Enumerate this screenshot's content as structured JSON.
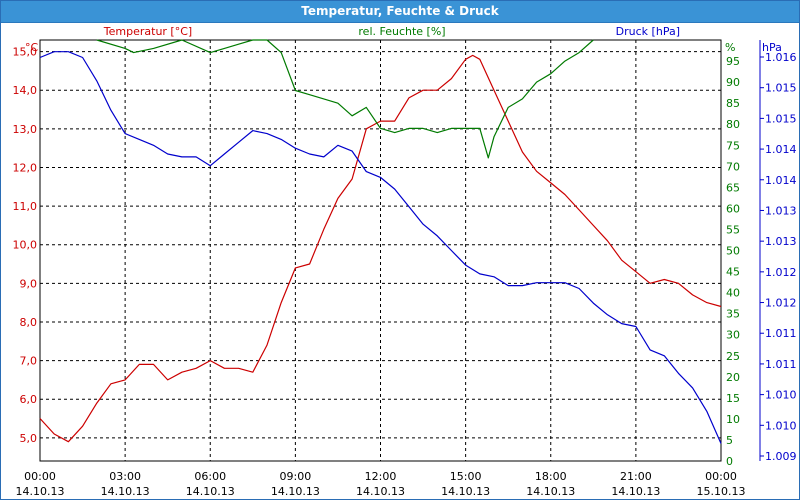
{
  "window": {
    "title": "Temperatur, Feuchte & Druck"
  },
  "colors": {
    "temperature": "#cc0000",
    "humidity": "#007a00",
    "pressure": "#0000cc",
    "grid": "#000000",
    "titlebar": "#3a93d6"
  },
  "chart_data": {
    "type": "line",
    "title": "Temperatur, Feuchte & Druck",
    "grid": true,
    "x_ticks": [
      {
        "time": "00:00",
        "date": "14.10.13"
      },
      {
        "time": "03:00",
        "date": "14.10.13"
      },
      {
        "time": "06:00",
        "date": "14.10.13"
      },
      {
        "time": "09:00",
        "date": "14.10.13"
      },
      {
        "time": "12:00",
        "date": "14.10.13"
      },
      {
        "time": "15:00",
        "date": "14.10.13"
      },
      {
        "time": "18:00",
        "date": "14.10.13"
      },
      {
        "time": "21:00",
        "date": "14.10.13"
      },
      {
        "time": "00:00",
        "date": "15.10.13"
      }
    ],
    "xlim_hours": [
      0,
      24
    ],
    "axes": {
      "temperature": {
        "label": "Temperatur [°C]",
        "unit": "°C",
        "ylim": [
          4.4,
          15.3
        ],
        "ticks": [
          "15,0",
          "14,0",
          "13,0",
          "12,0",
          "11,0",
          "10,0",
          "9,0",
          "8,0",
          "7,0",
          "6,0",
          "5,0"
        ]
      },
      "humidity": {
        "label": "rel. Feuchte [%]",
        "unit": "%",
        "ylim": [
          0,
          100
        ],
        "ticks": [
          "95",
          "90",
          "85",
          "80",
          "75",
          "70",
          "65",
          "60",
          "55",
          "50",
          "45",
          "40",
          "35",
          "30",
          "25",
          "20",
          "15",
          "10",
          "5",
          "0"
        ]
      },
      "pressure": {
        "label": "Druck [hPa]",
        "unit": "hPa",
        "ylim": [
          1009.0,
          1016.2
        ],
        "ticks": [
          "1.016",
          "1.015",
          "1.015",
          "1.014",
          "1.014",
          "1.013",
          "1.013",
          "1.012",
          "1.012",
          "1.011",
          "1.011",
          "1.010",
          "1.010",
          "1.009"
        ]
      }
    },
    "series": [
      {
        "name": "Temperatur [°C]",
        "axis": "temperature",
        "x": [
          0,
          0.5,
          1,
          1.5,
          2,
          2.5,
          3,
          3.5,
          4,
          4.5,
          5,
          5.5,
          6,
          6.5,
          7,
          7.5,
          8,
          8.5,
          9,
          9.5,
          10,
          10.5,
          11,
          11.5,
          12,
          12.5,
          13,
          13.5,
          14,
          14.5,
          15,
          15.25,
          15.5,
          15.75,
          16,
          16.5,
          17,
          17.5,
          18,
          18.5,
          19,
          19.5,
          20,
          20.5,
          21,
          21.5,
          22,
          22.5,
          23,
          23.5,
          24
        ],
        "values": [
          5.5,
          5.1,
          4.9,
          5.3,
          5.9,
          6.4,
          6.5,
          6.9,
          6.9,
          6.5,
          6.7,
          6.8,
          7.0,
          6.8,
          6.8,
          6.7,
          7.4,
          8.5,
          9.4,
          9.5,
          10.4,
          11.2,
          11.7,
          13.0,
          13.2,
          13.2,
          13.8,
          14.0,
          14.0,
          14.3,
          14.8,
          14.9,
          14.8,
          14.4,
          14.0,
          13.2,
          12.4,
          11.9,
          11.6,
          11.3,
          10.9,
          10.5,
          10.1,
          9.6,
          9.3,
          9.0,
          9.1,
          9.0,
          8.7,
          8.5,
          8.4
        ]
      },
      {
        "name": "rel. Feuchte [%]",
        "axis": "humidity",
        "x": [
          2,
          3,
          3.3,
          4,
          5,
          6,
          6.5,
          7,
          7.5,
          8,
          8.5,
          9,
          9.5,
          10,
          10.5,
          11,
          11.5,
          12,
          12.5,
          13,
          13.5,
          14,
          14.5,
          15,
          15.5,
          15.8,
          16,
          16.5,
          17,
          17.5,
          18,
          18.5,
          19,
          19.5
        ],
        "values": [
          100,
          98,
          97,
          98,
          100,
          97,
          98,
          99,
          100,
          100,
          97,
          88,
          87,
          86,
          85,
          82,
          84,
          79,
          78,
          79,
          79,
          78,
          79,
          79,
          79,
          72,
          77,
          84,
          86,
          90,
          92,
          95,
          97,
          100
        ]
      },
      {
        "name": "Druck [hPa]",
        "axis": "pressure",
        "x": [
          0,
          0.5,
          1,
          1.5,
          2,
          2.5,
          3,
          3.5,
          4,
          4.5,
          5,
          5.5,
          6,
          6.5,
          7,
          7.5,
          8,
          8.5,
          9,
          9.5,
          10,
          10.5,
          11,
          11.5,
          12,
          12.5,
          13,
          13.5,
          14,
          14.5,
          15,
          15.5,
          16,
          16.5,
          17,
          17.5,
          18,
          18.5,
          19,
          19.5,
          20,
          20.5,
          21,
          21.5,
          22,
          22.5,
          23,
          23.5,
          24
        ],
        "values": [
          1015.9,
          1016.0,
          1016.0,
          1015.9,
          1015.5,
          1015.0,
          1014.6,
          1014.5,
          1014.4,
          1014.25,
          1014.2,
          1014.2,
          1014.05,
          1014.25,
          1014.45,
          1014.65,
          1014.6,
          1014.5,
          1014.35,
          1014.25,
          1014.2,
          1014.4,
          1014.3,
          1013.95,
          1013.85,
          1013.65,
          1013.35,
          1013.05,
          1012.85,
          1012.6,
          1012.35,
          1012.2,
          1012.15,
          1012.0,
          1012.0,
          1012.05,
          1012.05,
          1012.05,
          1011.95,
          1011.7,
          1011.5,
          1011.35,
          1011.3,
          1010.9,
          1010.8,
          1010.5,
          1010.25,
          1009.85,
          1009.3
        ]
      }
    ]
  }
}
